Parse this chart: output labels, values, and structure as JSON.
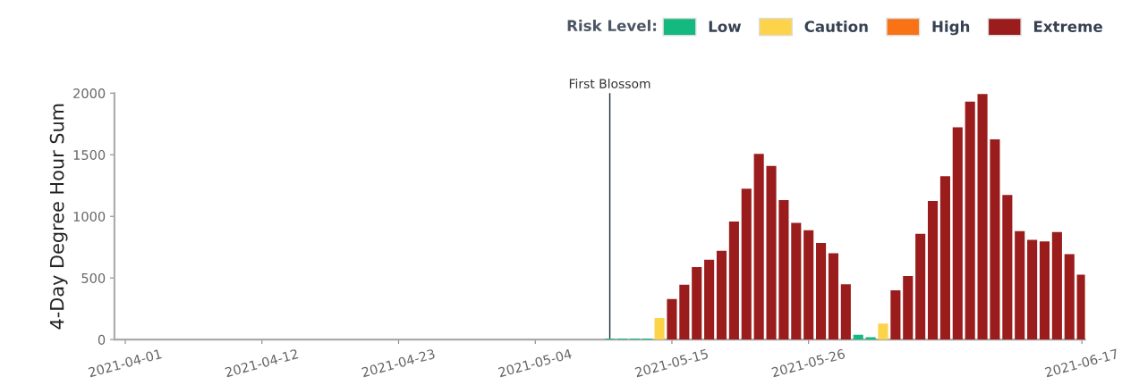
{
  "chart_data": {
    "type": "bar",
    "ylabel": "4-Day Degree Hour Sum",
    "legend_title": "Risk Level:",
    "legend": "top right",
    "x": [
      "2021-05-10",
      "2021-05-11",
      "2021-05-12",
      "2021-05-13",
      "2021-05-14",
      "2021-05-15",
      "2021-05-16",
      "2021-05-17",
      "2021-05-18",
      "2021-05-19",
      "2021-05-20",
      "2021-05-21",
      "2021-05-22",
      "2021-05-23",
      "2021-05-24",
      "2021-05-25",
      "2021-05-26",
      "2021-05-27",
      "2021-05-28",
      "2021-05-29",
      "2021-05-30",
      "2021-05-31",
      "2021-06-01",
      "2021-06-02",
      "2021-06-03",
      "2021-06-04",
      "2021-06-05",
      "2021-06-06",
      "2021-06-07",
      "2021-06-08",
      "2021-06-09",
      "2021-06-10",
      "2021-06-11",
      "2021-06-12",
      "2021-06-13",
      "2021-06-14",
      "2021-06-15",
      "2021-06-16",
      "2021-06-17"
    ],
    "series": [
      {
        "name": "Low",
        "color": "#13b97f",
        "values": [
          8,
          8,
          8,
          8,
          null,
          null,
          null,
          null,
          null,
          null,
          null,
          null,
          null,
          null,
          null,
          null,
          null,
          null,
          null,
          null,
          40,
          20,
          null,
          null,
          null,
          null,
          null,
          null,
          null,
          null,
          null,
          null,
          null,
          null,
          null,
          null,
          null,
          null,
          null
        ]
      },
      {
        "name": "Caution",
        "color": "#fdd34a",
        "values": [
          null,
          null,
          null,
          null,
          175,
          null,
          null,
          null,
          null,
          null,
          null,
          null,
          null,
          null,
          null,
          null,
          null,
          null,
          null,
          null,
          null,
          null,
          130,
          null,
          null,
          null,
          null,
          null,
          null,
          null,
          null,
          null,
          null,
          null,
          null,
          null,
          null,
          null,
          null
        ]
      },
      {
        "name": "High",
        "color": "#f97316",
        "values": [
          null,
          null,
          null,
          null,
          null,
          null,
          null,
          null,
          null,
          null,
          null,
          null,
          null,
          null,
          null,
          null,
          null,
          null,
          null,
          null,
          null,
          null,
          null,
          null,
          null,
          null,
          null,
          null,
          null,
          null,
          null,
          null,
          null,
          null,
          null,
          null,
          null,
          null,
          null
        ]
      },
      {
        "name": "Extreme",
        "color": "#9b1c1c",
        "values": [
          null,
          null,
          null,
          null,
          null,
          330,
          445,
          588,
          649,
          720,
          958,
          1225,
          1507,
          1409,
          1132,
          948,
          887,
          784,
          701,
          449,
          null,
          null,
          null,
          400,
          515,
          858,
          1125,
          1326,
          1723,
          1931,
          1993,
          1625,
          1174,
          880,
          809,
          796,
          873,
          693,
          527
        ]
      }
    ],
    "xlim": [
      "2021-03-31T03:00",
      "2021-06-17T06:00"
    ],
    "xticks": [
      "2021-04-01",
      "2021-04-12",
      "2021-04-23",
      "2021-05-04",
      "2021-05-15",
      "2021-05-26",
      "2021-06-17"
    ],
    "ylim": [
      0,
      2000
    ],
    "yticks": [
      0,
      500,
      1000,
      1500,
      2000
    ],
    "ref_lines": [
      {
        "axis": "x",
        "value": "2021-05-10",
        "label": "First Blossom",
        "color": "#1f2937"
      }
    ],
    "grid": false
  }
}
